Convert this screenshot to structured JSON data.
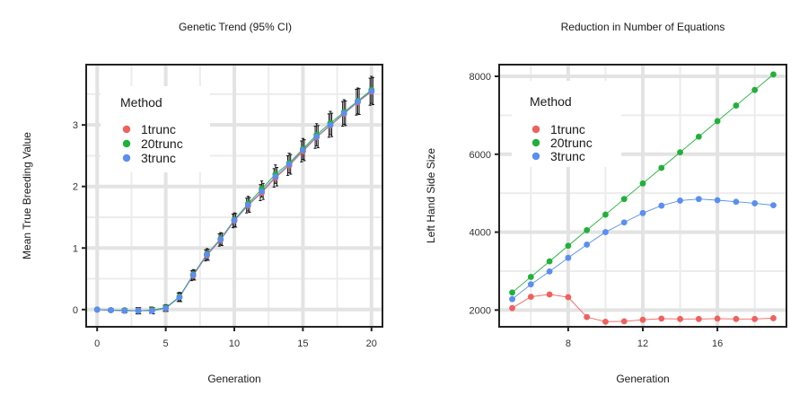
{
  "chart_data": [
    {
      "type": "line",
      "title": "Genetic Trend (95% CI)",
      "xlabel": "Generation",
      "ylabel": "Mean True Breeding Value",
      "xlim": [
        -0.8,
        20.8
      ],
      "ylim": [
        -0.28,
        3.98
      ],
      "xticks": [
        0,
        5,
        10,
        15,
        20
      ],
      "yticks": [
        0,
        1,
        2,
        3
      ],
      "grid": true,
      "legend_title": "Method",
      "legend_position": "top-left",
      "x": [
        0,
        1,
        2,
        3,
        4,
        5,
        6,
        7,
        8,
        9,
        10,
        11,
        12,
        13,
        14,
        15,
        16,
        17,
        18,
        19,
        20
      ],
      "series": [
        {
          "name": "1trunc",
          "color": "#F0605D",
          "values": [
            0,
            -0.01,
            -0.02,
            -0.02,
            -0.01,
            0.02,
            0.2,
            0.55,
            0.88,
            1.13,
            1.44,
            1.69,
            1.9,
            2.14,
            2.34,
            2.57,
            2.8,
            2.99,
            3.18,
            3.37,
            3.54
          ],
          "ci_half": [
            0,
            0.02,
            0.03,
            0.05,
            0.05,
            0.05,
            0.07,
            0.08,
            0.09,
            0.1,
            0.11,
            0.12,
            0.13,
            0.15,
            0.16,
            0.17,
            0.18,
            0.19,
            0.2,
            0.21,
            0.22
          ]
        },
        {
          "name": "20trunc",
          "color": "#21B03A",
          "values": [
            0,
            -0.01,
            -0.01,
            -0.02,
            -0.01,
            0.03,
            0.21,
            0.57,
            0.9,
            1.15,
            1.46,
            1.72,
            1.96,
            2.2,
            2.38,
            2.61,
            2.84,
            3.03,
            3.21,
            3.39,
            3.57
          ],
          "ci_half": [
            0,
            0.02,
            0.03,
            0.05,
            0.05,
            0.05,
            0.07,
            0.08,
            0.09,
            0.1,
            0.11,
            0.12,
            0.13,
            0.15,
            0.16,
            0.17,
            0.18,
            0.19,
            0.2,
            0.21,
            0.22
          ]
        },
        {
          "name": "3trunc",
          "color": "#5B8EF0",
          "values": [
            0,
            -0.01,
            -0.02,
            -0.02,
            -0.02,
            0.02,
            0.2,
            0.56,
            0.89,
            1.14,
            1.45,
            1.7,
            1.92,
            2.16,
            2.36,
            2.59,
            2.81,
            3.0,
            3.19,
            3.38,
            3.55
          ],
          "ci_half": [
            0,
            0.02,
            0.03,
            0.05,
            0.05,
            0.05,
            0.07,
            0.08,
            0.09,
            0.1,
            0.11,
            0.12,
            0.13,
            0.15,
            0.16,
            0.17,
            0.18,
            0.19,
            0.2,
            0.21,
            0.22
          ]
        }
      ]
    },
    {
      "type": "line",
      "title": "Reduction in Number of Equations",
      "xlabel": "Generation",
      "ylabel": "Left Hand Side Size",
      "xlim": [
        4.3,
        19.7
      ],
      "ylim": [
        1570,
        8300
      ],
      "xticks": [
        8,
        12,
        16
      ],
      "yticks": [
        2000,
        4000,
        6000,
        8000
      ],
      "grid": true,
      "legend_title": "Method",
      "legend_position": "top-left",
      "x": [
        5,
        6,
        7,
        8,
        9,
        10,
        11,
        12,
        13,
        14,
        15,
        16,
        17,
        18,
        19
      ],
      "series": [
        {
          "name": "1trunc",
          "color": "#F0605D",
          "values": [
            2050,
            2340,
            2400,
            2330,
            1820,
            1700,
            1710,
            1750,
            1780,
            1770,
            1770,
            1780,
            1770,
            1770,
            1790
          ]
        },
        {
          "name": "20trunc",
          "color": "#21B03A",
          "values": [
            2450,
            2850,
            3250,
            3650,
            4050,
            4450,
            4850,
            5250,
            5650,
            6050,
            6450,
            6850,
            7250,
            7650,
            8050
          ]
        },
        {
          "name": "3trunc",
          "color": "#5B8EF0",
          "values": [
            2280,
            2660,
            2990,
            3340,
            3680,
            4000,
            4250,
            4490,
            4680,
            4810,
            4850,
            4820,
            4780,
            4740,
            4690
          ]
        }
      ]
    }
  ]
}
